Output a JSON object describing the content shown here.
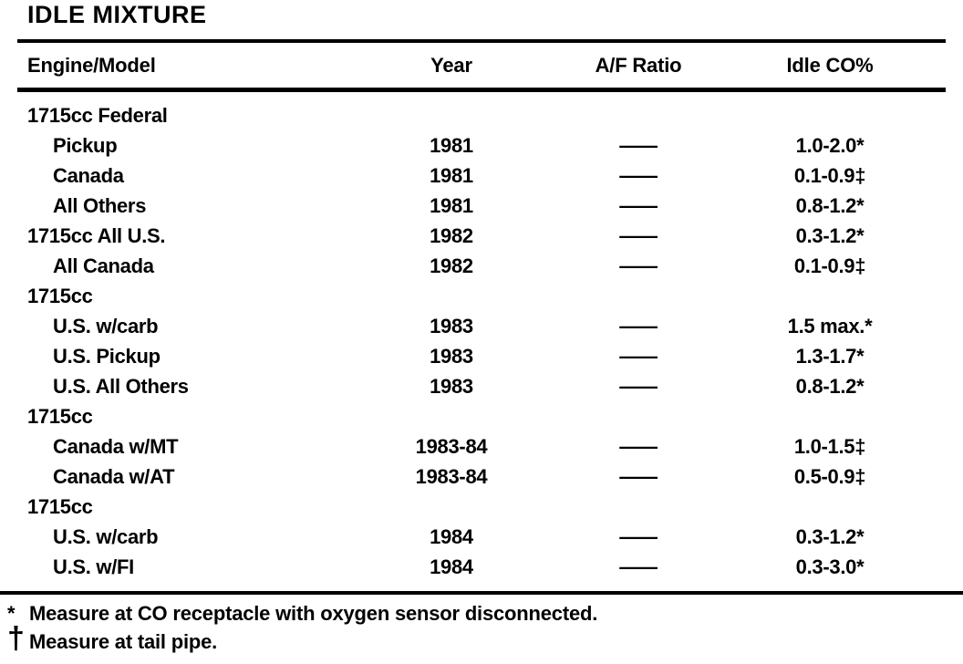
{
  "colors": {
    "ink": "#000000",
    "paper": "#ffffff"
  },
  "title": "IDLE MIXTURE",
  "table": {
    "columns": [
      "Engine/Model",
      "Year",
      "A/F Ratio",
      "Idle CO%"
    ],
    "rows": [
      {
        "model": "1715cc Federal",
        "indent": 0,
        "year": "",
        "af": "",
        "co": ""
      },
      {
        "model": "Pickup",
        "indent": 1,
        "year": "1981",
        "af": "—",
        "co": "1.0-2.0*"
      },
      {
        "model": "Canada",
        "indent": 1,
        "year": "1981",
        "af": "—",
        "co": "0.1-0.9‡"
      },
      {
        "model": "All Others",
        "indent": 1,
        "year": "1981",
        "af": "—",
        "co": "0.8-1.2*"
      },
      {
        "model": "1715cc All U.S.",
        "indent": 0,
        "year": "1982",
        "af": "—",
        "co": "0.3-1.2*"
      },
      {
        "model": "All Canada",
        "indent": 1,
        "year": "1982",
        "af": "—",
        "co": "0.1-0.9‡"
      },
      {
        "model": "1715cc",
        "indent": 0,
        "year": "",
        "af": "",
        "co": ""
      },
      {
        "model": "U.S. w/carb",
        "indent": 1,
        "year": "1983",
        "af": "—",
        "co": "1.5 max.*"
      },
      {
        "model": "U.S. Pickup",
        "indent": 1,
        "year": "1983",
        "af": "—",
        "co": "1.3-1.7*"
      },
      {
        "model": "U.S. All Others",
        "indent": 1,
        "year": "1983",
        "af": "—",
        "co": "0.8-1.2*"
      },
      {
        "model": "1715cc",
        "indent": 0,
        "year": "",
        "af": "",
        "co": ""
      },
      {
        "model": "Canada w/MT",
        "indent": 1,
        "year": "1983-84",
        "af": "—",
        "co": "1.0-1.5‡"
      },
      {
        "model": "Canada w/AT",
        "indent": 1,
        "year": "1983-84",
        "af": "—",
        "co": "0.5-0.9‡"
      },
      {
        "model": "1715cc",
        "indent": 0,
        "year": "",
        "af": "",
        "co": ""
      },
      {
        "model": "U.S. w/carb",
        "indent": 1,
        "year": "1984",
        "af": "—",
        "co": "0.3-1.2*"
      },
      {
        "model": "U.S. w/FI",
        "indent": 1,
        "year": "1984",
        "af": "—",
        "co": "0.3-3.0*"
      }
    ]
  },
  "footnotes": [
    {
      "marker": "*",
      "text": "Measure at CO receptacle with oxygen sensor disconnected."
    },
    {
      "marker": "†",
      "text": "Measure at tail pipe."
    }
  ]
}
